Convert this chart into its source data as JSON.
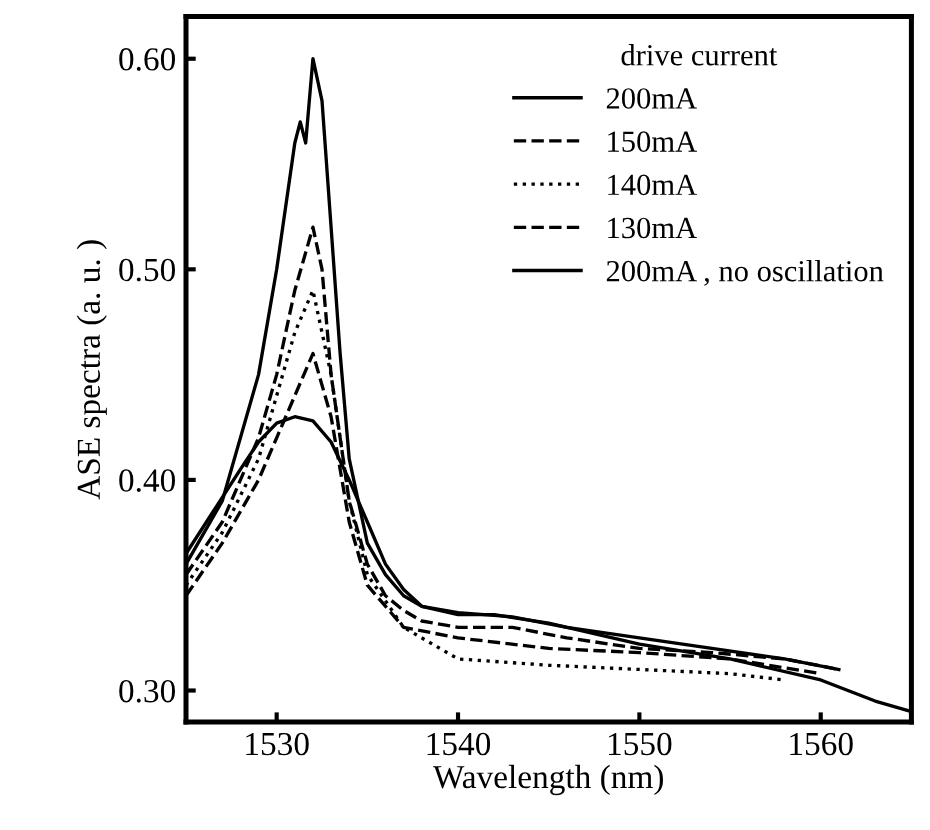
{
  "chart_data": {
    "type": "line",
    "xlabel": "Wavelength (nm)",
    "ylabel": "ASE spectra (a. u. )",
    "legend_title": "drive current",
    "legend": "top right",
    "grid": false,
    "marker": "none",
    "xlim": [
      1525,
      1565
    ],
    "xticks": [
      1530,
      1540,
      1550,
      1560
    ],
    "ylim": [
      0.285,
      0.62
    ],
    "yticks": [
      {
        "value": 0.3,
        "label": "0.30"
      },
      {
        "value": 0.4,
        "label": "0.40"
      },
      {
        "value": 0.5,
        "label": "0.50"
      },
      {
        "value": 0.6,
        "label": "0.60"
      }
    ],
    "series": [
      {
        "name": "200mA",
        "color": "#000000",
        "line_style": "solid",
        "x": [
          1525,
          1527,
          1529,
          1530,
          1531,
          1531.3,
          1531.6,
          1532,
          1532.5,
          1533,
          1533.5,
          1534,
          1535,
          1536,
          1537,
          1538,
          1540,
          1543,
          1546,
          1550,
          1554,
          1558,
          1561
        ],
        "values": [
          0.36,
          0.39,
          0.45,
          0.5,
          0.56,
          0.57,
          0.56,
          0.6,
          0.58,
          0.52,
          0.46,
          0.41,
          0.37,
          0.355,
          0.345,
          0.34,
          0.337,
          0.335,
          0.33,
          0.325,
          0.32,
          0.315,
          0.31
        ]
      },
      {
        "name": "150mA",
        "color": "#000000",
        "line_style": "dashed",
        "x": [
          1525,
          1527,
          1529,
          1530,
          1531,
          1532,
          1532.5,
          1533,
          1534,
          1535,
          1536,
          1537,
          1538,
          1540,
          1543,
          1546,
          1550,
          1554,
          1558,
          1561
        ],
        "values": [
          0.355,
          0.38,
          0.42,
          0.45,
          0.49,
          0.52,
          0.5,
          0.45,
          0.39,
          0.36,
          0.345,
          0.338,
          0.333,
          0.33,
          0.33,
          0.325,
          0.32,
          0.318,
          0.315,
          0.31
        ]
      },
      {
        "name": "140mA",
        "color": "#000000",
        "line_style": "dotted",
        "x": [
          1525,
          1527,
          1529,
          1530,
          1531,
          1532,
          1533,
          1534,
          1535,
          1537,
          1540,
          1545,
          1550,
          1555,
          1558
        ],
        "values": [
          0.35,
          0.375,
          0.41,
          0.44,
          0.47,
          0.49,
          0.45,
          0.39,
          0.355,
          0.33,
          0.315,
          0.312,
          0.31,
          0.308,
          0.305
        ]
      },
      {
        "name": "130mA",
        "color": "#000000",
        "line_style": "dashed",
        "x": [
          1525,
          1527,
          1529,
          1530,
          1531,
          1532,
          1533,
          1534,
          1535,
          1537,
          1540,
          1545,
          1550,
          1555,
          1560
        ],
        "values": [
          0.345,
          0.37,
          0.4,
          0.42,
          0.44,
          0.46,
          0.43,
          0.38,
          0.35,
          0.33,
          0.325,
          0.32,
          0.318,
          0.315,
          0.308
        ]
      },
      {
        "name": "200mA , no oscillation",
        "color": "#000000",
        "line_style": "solid",
        "x": [
          1525,
          1526.5,
          1528,
          1529,
          1530,
          1531,
          1532,
          1533,
          1534,
          1535,
          1536,
          1537,
          1538,
          1540,
          1542,
          1545,
          1550,
          1555,
          1560,
          1563,
          1565
        ],
        "values": [
          0.365,
          0.385,
          0.405,
          0.418,
          0.427,
          0.43,
          0.428,
          0.418,
          0.4,
          0.38,
          0.36,
          0.348,
          0.34,
          0.336,
          0.336,
          0.332,
          0.322,
          0.315,
          0.305,
          0.295,
          0.29
        ]
      }
    ]
  }
}
